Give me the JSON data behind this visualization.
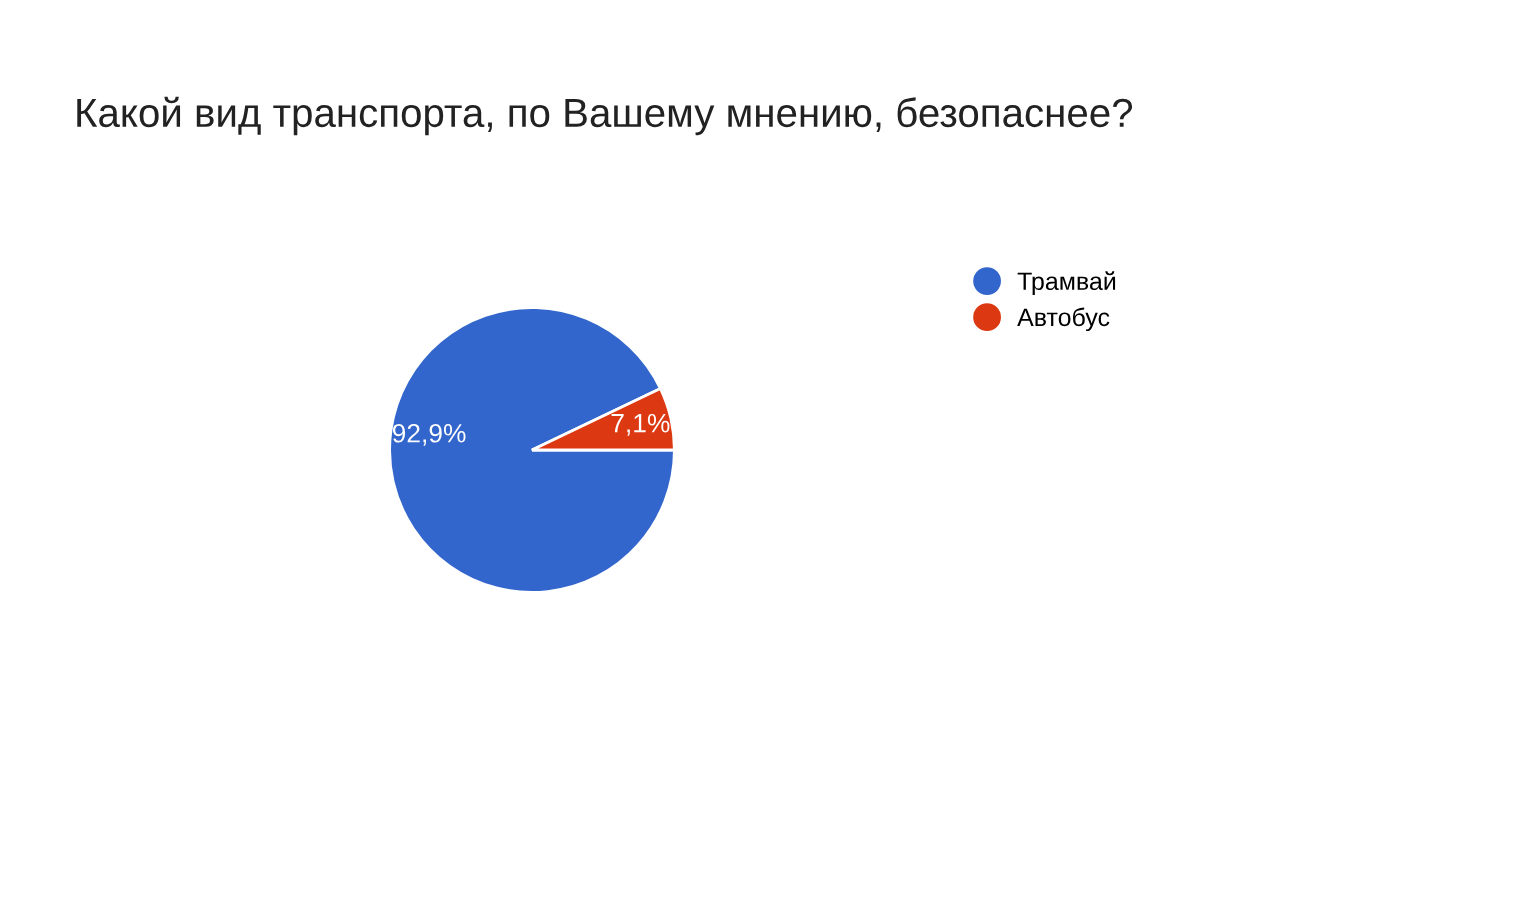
{
  "chart_data": {
    "type": "pie",
    "title": "Какой вид транспорта, по Вашему мнению, безопаснее?",
    "categories": [
      "Трамвай",
      "Автобус"
    ],
    "values": [
      92.9,
      7.1
    ],
    "colors": [
      "#3366cc",
      "#dc3912"
    ],
    "value_labels": [
      "92,9%",
      "7,1%"
    ],
    "legend": "top right"
  }
}
